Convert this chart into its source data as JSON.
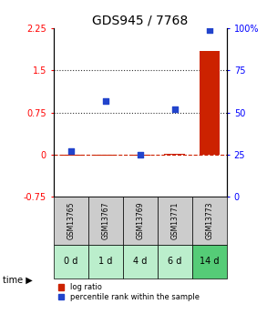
{
  "title": "GDS945 / 7768",
  "samples": [
    "GSM13765",
    "GSM13767",
    "GSM13769",
    "GSM13771",
    "GSM13773"
  ],
  "time_labels": [
    "0 d",
    "1 d",
    "4 d",
    "6 d",
    "14 d"
  ],
  "log_ratio": [
    -0.02,
    -0.02,
    -0.02,
    0.02,
    1.85
  ],
  "percentile_rank": [
    27,
    57,
    25,
    52,
    99
  ],
  "left_ylim": [
    -0.75,
    2.25
  ],
  "right_ylim": [
    0,
    100
  ],
  "left_yticks": [
    -0.75,
    0.0,
    0.75,
    1.5,
    2.25
  ],
  "right_yticks": [
    0,
    25,
    50,
    75,
    100
  ],
  "right_yticklabels": [
    "0",
    "25",
    "50",
    "75",
    "100%"
  ],
  "bar_color": "#cc2200",
  "scatter_color": "#2244cc",
  "dashed_color": "#cc2200",
  "dotted_color": "#333333",
  "sample_box_color": "#cccccc",
  "time_box_color_light": "#bbeecc",
  "time_box_color_dark": "#55cc77",
  "legend_red": "#cc2200",
  "legend_blue": "#2244cc",
  "background_color": "#ffffff",
  "title_fontsize": 10,
  "tick_fontsize": 7,
  "label_fontsize": 7,
  "time_colors": [
    "#bbeecc",
    "#bbeecc",
    "#bbeecc",
    "#bbeecc",
    "#55cc77"
  ]
}
